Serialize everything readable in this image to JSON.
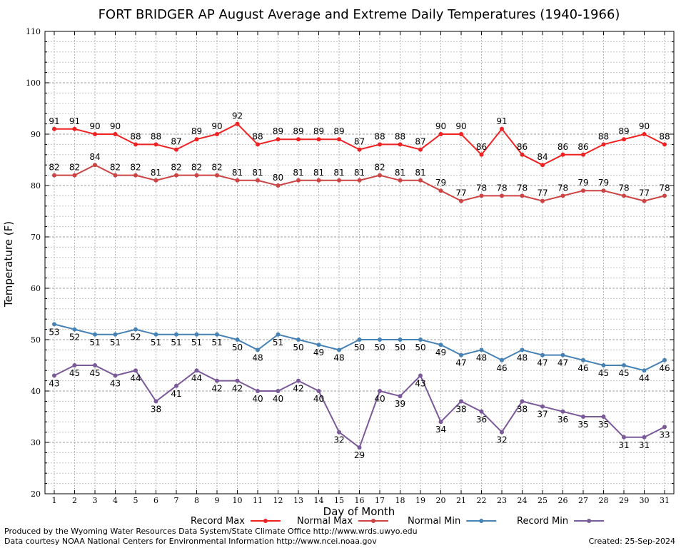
{
  "chart_data": {
    "type": "line",
    "title": "FORT BRIDGER AP August Average and Extreme Daily Temperatures (1940-1966)",
    "xlabel": "Day of Month",
    "ylabel": "Temperature (F)",
    "ylim": [
      20,
      110
    ],
    "xlim": [
      1,
      31
    ],
    "grid": true,
    "legend_position": "bottom",
    "x": [
      1,
      2,
      3,
      4,
      5,
      6,
      7,
      8,
      9,
      10,
      11,
      12,
      13,
      14,
      15,
      16,
      17,
      18,
      19,
      20,
      21,
      22,
      23,
      24,
      25,
      26,
      27,
      28,
      29,
      30,
      31
    ],
    "yticks": [
      20,
      30,
      40,
      50,
      60,
      70,
      80,
      90,
      100,
      110
    ],
    "series": [
      {
        "name": "Record Max",
        "color": "#ee2222",
        "values": [
          91,
          91,
          90,
          90,
          88,
          88,
          87,
          89,
          90,
          92,
          88,
          89,
          89,
          89,
          89,
          87,
          88,
          88,
          87,
          90,
          90,
          86,
          91,
          86,
          84,
          86,
          86,
          88,
          89,
          90,
          88
        ]
      },
      {
        "name": "Normal Max",
        "color": "#cc4444",
        "values": [
          82,
          82,
          84,
          82,
          82,
          81,
          82,
          82,
          82,
          81,
          81,
          80,
          81,
          81,
          81,
          81,
          82,
          81,
          81,
          79,
          77,
          78,
          78,
          78,
          77,
          78,
          79,
          79,
          78,
          77,
          78
        ]
      },
      {
        "name": "Normal Min",
        "color": "#4682b4",
        "values": [
          53,
          52,
          51,
          51,
          52,
          51,
          51,
          51,
          51,
          50,
          48,
          51,
          50,
          49,
          48,
          50,
          50,
          50,
          50,
          49,
          47,
          48,
          46,
          48,
          47,
          47,
          46,
          45,
          45,
          44,
          46
        ]
      },
      {
        "name": "Record Min",
        "color": "#7b5a9a",
        "values": [
          43,
          45,
          45,
          43,
          44,
          38,
          41,
          44,
          42,
          42,
          40,
          40,
          42,
          40,
          32,
          29,
          40,
          39,
          43,
          34,
          38,
          36,
          32,
          38,
          37,
          36,
          35,
          35,
          31,
          31,
          33
        ]
      }
    ]
  },
  "footer": {
    "produced_by": "Produced by the Wyoming Water Resources Data System/State Climate Office http://www.wrds.uwyo.edu",
    "courtesy": "Data courtesy NOAA National Centers for Environmental Information http://www.ncei.noaa.gov",
    "created": "Created:  25-Sep-2024"
  }
}
